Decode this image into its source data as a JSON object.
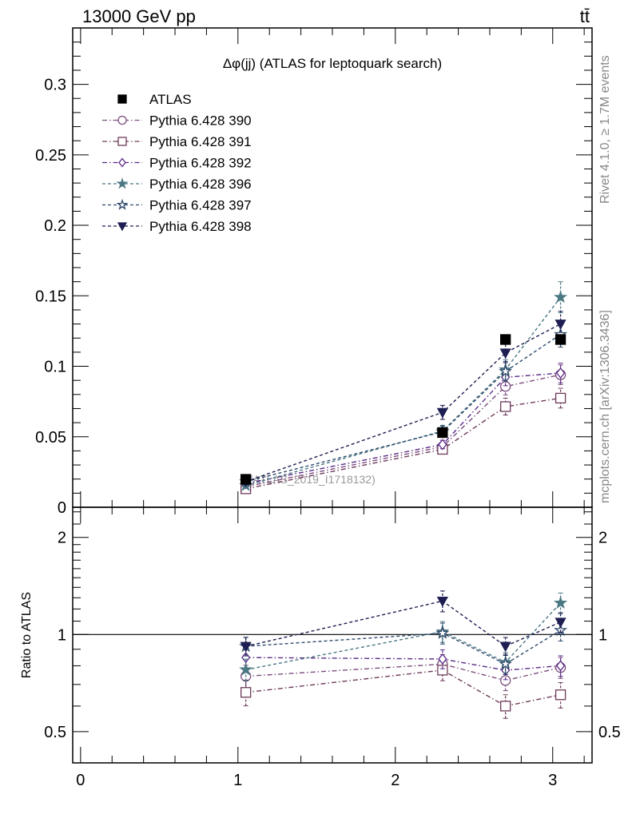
{
  "header": {
    "energy_label": "13000 GeV pp",
    "process_label": "tt̄"
  },
  "side_labels": {
    "rivet": "Rivet 4.1.0, ≥ 1.7M events",
    "mcplots": "mcplots.cern.ch [arXiv:1306.3436]"
  },
  "chart_data": {
    "type": "line",
    "title": "Δφ(jj) (ATLAS for leptoquark search)",
    "watermark": "(ATLAS_2019_I1718132)",
    "xlabel": "",
    "ylabel": "",
    "ratio_ylabel": "Ratio to ATLAS",
    "xlim": [
      -0.05,
      3.25
    ],
    "ylim": [
      0,
      0.34
    ],
    "ratio_ylim": [
      0.4,
      2.48
    ],
    "ratio_scale": "log",
    "x_ticks": [
      "0",
      "1",
      "2",
      "3"
    ],
    "y_ticks": [
      "0",
      "0.05",
      "0.1",
      "0.15",
      "0.2",
      "0.25",
      "0.3"
    ],
    "ratio_ticks": [
      "0.5",
      "1",
      "2"
    ],
    "legend_position": "top-left",
    "x": [
      1.05,
      2.3,
      2.7,
      3.05
    ],
    "data": {
      "name": "ATLAS",
      "color": "#000000",
      "marker": "square-filled",
      "values": [
        0.0198,
        0.053,
        0.119,
        0.119
      ],
      "errors": [
        0.0012,
        0.002,
        0.003,
        0.003
      ]
    },
    "series": [
      {
        "name": "Pythia 6.428 390",
        "color": "#7b4d7e",
        "marker": "circle-open",
        "dash": "dashdot",
        "values": [
          0.0147,
          0.0429,
          0.0857,
          0.094
        ],
        "errors": [
          0.0012,
          0.003,
          0.006,
          0.007
        ]
      },
      {
        "name": "Pythia 6.428 391",
        "color": "#6e3a5a",
        "marker": "square-open",
        "dash": "dashdot",
        "values": [
          0.0131,
          0.0411,
          0.0714,
          0.0774
        ],
        "errors": [
          0.0012,
          0.003,
          0.006,
          0.007
        ]
      },
      {
        "name": "Pythia 6.428 392",
        "color": "#5a2a88",
        "marker": "diamond-open",
        "dash": "dashdot",
        "values": [
          0.0168,
          0.0445,
          0.0922,
          0.0952
        ],
        "errors": [
          0.0012,
          0.003,
          0.006,
          0.007
        ]
      },
      {
        "name": "Pythia 6.428 396",
        "color": "#4c7884",
        "marker": "star-filled",
        "dash": "dashed",
        "values": [
          0.0154,
          0.0541,
          0.0976,
          0.149
        ],
        "errors": [
          0.0012,
          0.004,
          0.007,
          0.011
        ]
      },
      {
        "name": "Pythia 6.428 397",
        "color": "#2f4b6c",
        "marker": "star-open",
        "dash": "dashed",
        "values": [
          0.0182,
          0.0535,
          0.0964,
          0.1226
        ],
        "errors": [
          0.0012,
          0.004,
          0.007,
          0.009
        ]
      },
      {
        "name": "Pythia 6.428 398",
        "color": "#1e1e52",
        "marker": "triangle-down-filled",
        "dash": "dashed",
        "values": [
          0.0182,
          0.0673,
          0.1095,
          0.13
        ],
        "errors": [
          0.0012,
          0.005,
          0.007,
          0.009
        ]
      }
    ]
  }
}
